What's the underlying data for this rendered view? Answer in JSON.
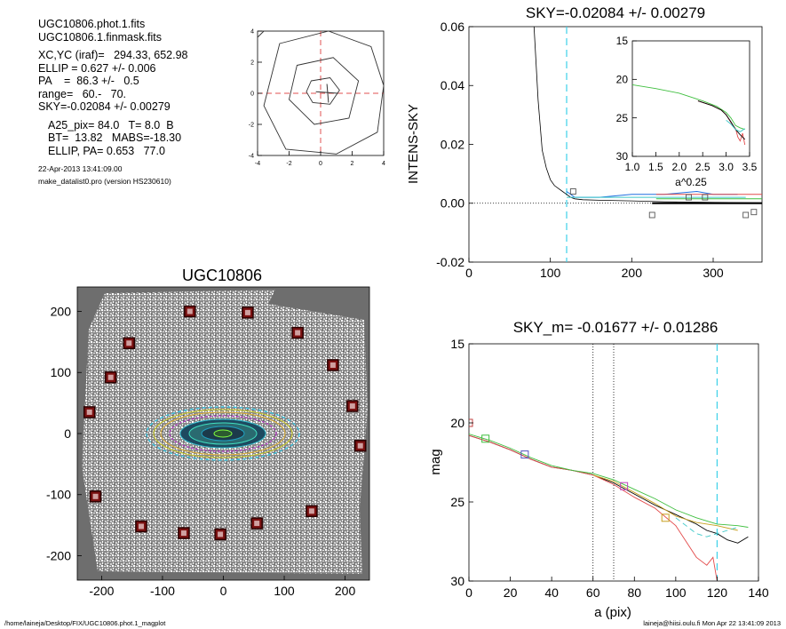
{
  "header": {
    "lines": [
      "UGC10806.phot.1.fits",
      "UGC10806.1.finmask.fits",
      "XC,YC (iraf)=   294.33, 652.98",
      "ELLIP = 0.627 +/- 0.006",
      "PA    =  86.3 +/-   0.5",
      "range=   60.-   70.",
      "SKY=-0.02084 +/- 0.00279",
      "A25_pix= 84.0   T= 8.0  B",
      "BT=  13.82   MABS=-18.30",
      "ELLIP, PA= 0.653   77.0",
      "22-Apr-2013 13:41:09.00",
      "make_datalist0.pro (version HS230610)"
    ]
  },
  "footer": {
    "left": "/home/laineja/Desktop/FIX/UGC10806.phot.1_magplot",
    "right": "laineja@hiisi.oulu.fi  Mon Apr 22 13:41:09 2013"
  },
  "chart_data": [
    {
      "type": "contour",
      "xlim": [
        -4,
        4
      ],
      "ylim": [
        -4,
        4
      ],
      "ticks": [
        "-4",
        "-2",
        "0",
        "2",
        "4"
      ]
    },
    {
      "type": "line",
      "title": "SKY=-0.02084 +/- 0.00279",
      "ylabel": "INTENS-SKY",
      "xlim": [
        0,
        360
      ],
      "ylim": [
        -0.02,
        0.06
      ],
      "xticks": [
        "0",
        "100",
        "200",
        "300"
      ],
      "yticks": [
        "-0.02",
        "0.00",
        "0.02",
        "0.04",
        "0.06"
      ],
      "sky_window_x": 120,
      "series": [
        {
          "color": "#000000",
          "x": [
            80,
            85,
            90,
            95,
            100,
            105,
            110,
            115,
            120,
            125,
            130,
            140,
            160,
            200,
            240,
            300,
            360
          ],
          "y": [
            0.06,
            0.035,
            0.018,
            0.012,
            0.008,
            0.006,
            0.005,
            0.004,
            0.003,
            0.002,
            0.0015,
            0.0012,
            0.001,
            0.0008,
            0.0005,
            0.0003,
            0.0002
          ]
        },
        {
          "color": "#1f6fe0",
          "x": [
            120,
            130,
            160,
            200,
            240,
            280,
            300,
            330
          ],
          "y": [
            0.004,
            0.002,
            0.002,
            0.003,
            0.003,
            0.004,
            0.003,
            0.003
          ]
        },
        {
          "color": "#3cc8c8",
          "x": [
            120,
            140,
            180,
            220,
            260,
            300,
            340
          ],
          "y": [
            0.002,
            0.002,
            0.002,
            0.002,
            0.002,
            0.002,
            0.002
          ]
        },
        {
          "color": "#e34b4b",
          "x": [
            230,
            360
          ],
          "y": [
            0.003,
            0.003
          ]
        },
        {
          "color": "#3fbf3f",
          "x": [
            230,
            360
          ],
          "y": [
            0.0015,
            0.0015
          ]
        }
      ],
      "black_segment": {
        "x": [
          225,
          360
        ],
        "y": [
          0.0,
          0.0
        ]
      },
      "squares": [
        {
          "x": 128,
          "y": 0.004
        },
        {
          "x": 225,
          "y": -0.004
        },
        {
          "x": 270,
          "y": 0.002
        },
        {
          "x": 290,
          "y": 0.002
        },
        {
          "x": 340,
          "y": -0.004
        },
        {
          "x": 350,
          "y": -0.003
        }
      ],
      "inset": {
        "xlim": [
          1.0,
          3.5
        ],
        "ylim": [
          15,
          30
        ],
        "ylim_reversed": true,
        "xlabel": "a^0.25",
        "xticks": [
          "1.0",
          "1.5",
          "2.0",
          "2.5",
          "3.0",
          "3.5"
        ],
        "yticks": [
          "15",
          "20",
          "25",
          "30"
        ]
      }
    },
    {
      "type": "image",
      "title": "UGC10806",
      "xlim": [
        -240,
        240
      ],
      "ylim": [
        -240,
        240
      ],
      "xticks": [
        "-200",
        "-100",
        "0",
        "100",
        "200"
      ],
      "yticks": [
        "-200",
        "-100",
        "0",
        "100",
        "200"
      ],
      "mask_markers": [
        {
          "x": -55,
          "y": 200
        },
        {
          "x": 40,
          "y": 198
        },
        {
          "x": 122,
          "y": 165
        },
        {
          "x": -155,
          "y": 148
        },
        {
          "x": 180,
          "y": 112
        },
        {
          "x": -185,
          "y": 92
        },
        {
          "x": -220,
          "y": 35
        },
        {
          "x": 212,
          "y": 45
        },
        {
          "x": 225,
          "y": -20
        },
        {
          "x": -210,
          "y": -103
        },
        {
          "x": 145,
          "y": -127
        },
        {
          "x": -135,
          "y": -152
        },
        {
          "x": -65,
          "y": -163
        },
        {
          "x": -5,
          "y": -165
        },
        {
          "x": 55,
          "y": -147
        }
      ]
    },
    {
      "type": "line",
      "title": "SKY_m= -0.01677 +/- 0.01286",
      "xlabel": "a (pix)",
      "ylabel": "mag",
      "xlim": [
        0,
        140
      ],
      "ylim": [
        15,
        30
      ],
      "y_reversed": true,
      "xticks": [
        "0",
        "20",
        "40",
        "60",
        "80",
        "100",
        "120",
        "140"
      ],
      "yticks": [
        "15",
        "20",
        "25",
        "30"
      ],
      "vlines_dotted": [
        60,
        70
      ],
      "vlines_dashed": [
        120
      ],
      "series": [
        {
          "color": "#000000",
          "x": [
            0,
            10,
            20,
            30,
            40,
            50,
            60,
            70,
            80,
            90,
            100,
            110,
            115,
            120,
            125,
            130,
            135
          ],
          "y": [
            20.8,
            21.2,
            21.7,
            22.3,
            22.8,
            23.0,
            23.3,
            23.8,
            24.5,
            25.2,
            25.8,
            26.4,
            26.8,
            27.0,
            27.4,
            27.6,
            27.2
          ]
        },
        {
          "color": "#e34b4b",
          "x": [
            0,
            10,
            20,
            30,
            40,
            50,
            60,
            70,
            80,
            90,
            100,
            105,
            110,
            115,
            118,
            120
          ],
          "y": [
            20.8,
            21.2,
            21.7,
            22.3,
            22.8,
            23.0,
            23.3,
            23.9,
            24.7,
            25.4,
            26.5,
            27.5,
            28.5,
            29.0,
            28.5,
            30.0
          ]
        },
        {
          "color": "#3fbf3f",
          "x": [
            0,
            10,
            20,
            30,
            40,
            50,
            60,
            70,
            80,
            90,
            100,
            110,
            120,
            130,
            135
          ],
          "y": [
            20.7,
            21.1,
            21.6,
            22.2,
            22.7,
            23.0,
            23.2,
            23.6,
            24.2,
            24.8,
            25.5,
            26.0,
            26.4,
            26.5,
            26.6
          ]
        },
        {
          "color": "#c8a020",
          "x": [
            60,
            70,
            80,
            90,
            100,
            110,
            120,
            130
          ],
          "y": [
            23.3,
            23.7,
            24.4,
            25.1,
            25.9,
            26.3,
            26.5,
            26.8
          ]
        },
        {
          "color": "#3cc8c8",
          "x": [
            100,
            105,
            110,
            115,
            120,
            125,
            130
          ],
          "y": [
            26.0,
            26.5,
            27.0,
            27.2,
            27.0,
            26.8,
            26.6
          ]
        }
      ],
      "squares": [
        {
          "x": 0,
          "y": 20.0,
          "color": "#c04040"
        },
        {
          "x": 8,
          "y": 21.0,
          "color": "#3fbf3f"
        },
        {
          "x": 27,
          "y": 22.0,
          "color": "#5050c0"
        },
        {
          "x": 75,
          "y": 24.0,
          "color": "#c040c0"
        },
        {
          "x": 95,
          "y": 26.0,
          "color": "#c8a020"
        }
      ]
    }
  ]
}
